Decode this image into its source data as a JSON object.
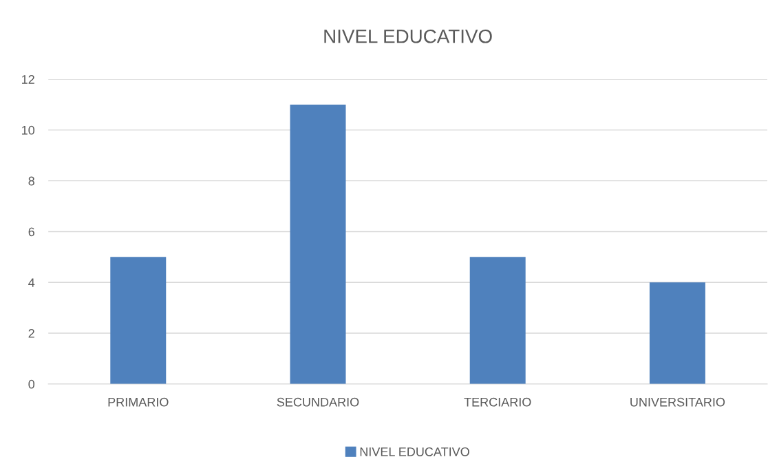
{
  "chart_data": {
    "type": "bar",
    "title": "NIVEL EDUCATIVO",
    "categories": [
      "PRIMARIO",
      "SECUNDARIO",
      "TERCIARIO",
      "UNIVERSITARIO"
    ],
    "series": [
      {
        "name": "NIVEL EDUCATIVO",
        "color": "#4f81bd",
        "values": [
          5,
          11,
          5,
          4
        ]
      }
    ],
    "ylim": [
      0,
      12
    ],
    "yticks": [
      0,
      2,
      4,
      6,
      8,
      10,
      12
    ],
    "grid": "y",
    "legend": "bottom"
  }
}
